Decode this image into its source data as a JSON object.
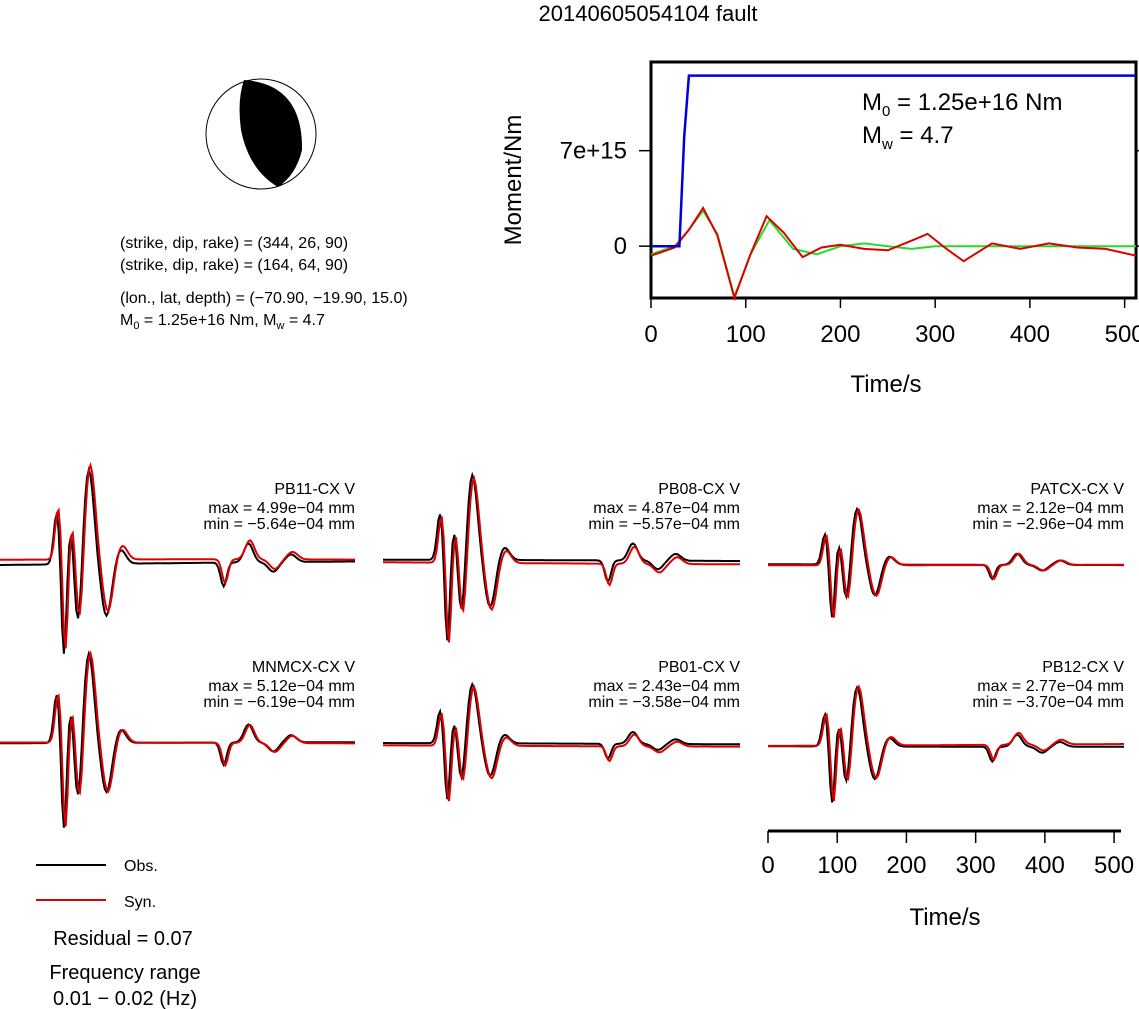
{
  "title": "20140605054104 fault",
  "beachball": {
    "strike1": "(strike, dip, rake) = (344, 26, 90)",
    "strike2": "(strike, dip, rake) = (164, 64, 90)",
    "location": "(lon., lat, depth) = (−70.90, −19.90, 15.0)",
    "moment_line_a": "M",
    "moment_line_sub": "0",
    "moment_line_b": " = 1.25e+16 Nm, M",
    "moment_line_sub2": "w",
    "moment_line_c": " = 4.7"
  },
  "moment_plot": {
    "ylabel": "Moment/Nm",
    "xlabel": "Time/s",
    "m0_a": "M",
    "m0_sub": "0",
    "m0_b": " = 1.25e+16 Nm",
    "mw_a": "M",
    "mw_sub": "w",
    "mw_b": " = 4.7",
    "x_ticks": [
      "0",
      "100",
      "200",
      "300",
      "400",
      "500"
    ],
    "y_ticks": [
      "0",
      "7e+15"
    ],
    "colors": {
      "moment": "#0000dd",
      "green": "#22dd22",
      "red": "#dd0000"
    }
  },
  "stations": [
    {
      "name": "PB11-CX V",
      "max": "max = 4.99e−04 mm",
      "min": "min = −5.64e−04 mm"
    },
    {
      "name": "PB08-CX V",
      "max": "max = 4.87e−04 mm",
      "min": "min = −5.57e−04 mm"
    },
    {
      "name": "PATCX-CX V",
      "max": "max = 2.12e−04 mm",
      "min": "min = −2.96e−04 mm"
    },
    {
      "name": "MNMCX-CX V",
      "max": "max = 5.12e−04 mm",
      "min": "min = −6.19e−04 mm"
    },
    {
      "name": "PB01-CX V",
      "max": "max = 2.43e−04 mm",
      "min": "min = −3.58e−04 mm"
    },
    {
      "name": "PB12-CX V",
      "max": "max = 2.77e−04 mm",
      "min": "min = −3.70e−04 mm"
    }
  ],
  "wave_axis": {
    "xlabel": "Time/s",
    "x_ticks": [
      "0",
      "100",
      "200",
      "300",
      "400",
      "500"
    ]
  },
  "legend": {
    "obs": "Obs.",
    "syn": "Syn."
  },
  "residual": "Residual = 0.07",
  "freq_label": "Frequency range",
  "freq_value": "0.01 − 0.02 (Hz)",
  "chart_data": [
    {
      "type": "line",
      "title": "",
      "xlabel": "Time/s",
      "ylabel": "Moment/Nm",
      "xlim": [
        0,
        512
      ],
      "ylim": [
        -3800000000000000.0,
        1.35e+16
      ],
      "series": [
        {
          "x": [
            0,
            30,
            35,
            40,
            512
          ],
          "y": [
            0,
            0,
            8000000000000000.0,
            1.25e+16,
            1.25e+16
          ]
        },
        {
          "x": [
            0,
            25,
            40,
            55,
            70,
            88,
            105,
            125,
            150,
            175,
            200,
            225,
            250,
            275,
            300,
            350,
            400,
            450,
            512
          ],
          "y": [
            -600000000000000.0,
            0,
            1200000000000000.0,
            2600000000000000.0,
            900000000000000.0,
            -3700000000000000.0,
            -600000000000000.0,
            1900000000000000.0,
            -200000000000000.0,
            -600000000000000.0,
            0,
            200000000000000.0,
            0,
            -200000000000000.0,
            0,
            0,
            0,
            0,
            0
          ]
        },
        {
          "x": [
            0,
            25,
            40,
            55,
            70,
            88,
            105,
            122,
            140,
            160,
            180,
            200,
            225,
            250,
            275,
            292,
            310,
            330,
            360,
            390,
            420,
            450,
            480,
            512
          ],
          "y": [
            -700000000000000.0,
            -100000000000000.0,
            1200000000000000.0,
            2800000000000000.0,
            800000000000000.0,
            -3800000000000000.0,
            -600000000000000.0,
            2200000000000000.0,
            1000000000000000.0,
            -800000000000000.0,
            -100000000000000.0,
            100000000000000.0,
            -200000000000000.0,
            -300000000000000.0,
            400000000000000.0,
            900000000000000.0,
            -100000000000000.0,
            -1100000000000000.0,
            200000000000000.0,
            -200000000000000.0,
            200000000000000.0,
            -100000000000000.0,
            -200000000000000.0,
            -700000000000000.0
          ]
        }
      ]
    }
  ]
}
